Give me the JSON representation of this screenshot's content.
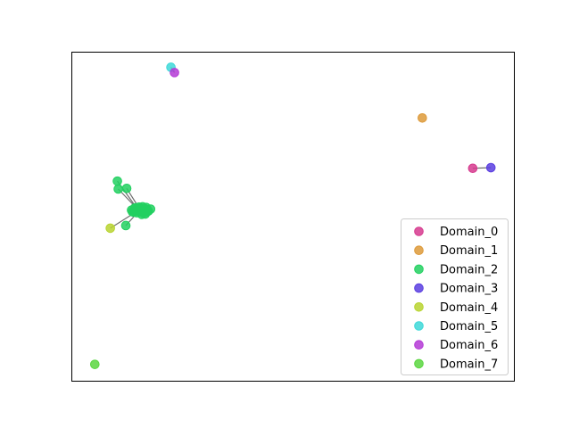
{
  "chart_data": {
    "type": "scatter",
    "title": "",
    "xlabel": "",
    "ylabel": "",
    "xlim": [
      0,
      100
    ],
    "ylim": [
      0,
      100
    ],
    "axis_ticks_visible": false,
    "grid": false,
    "legend_position": "lower-right",
    "edge_color": "#555555",
    "series": [
      {
        "name": "Domain_0",
        "color": "#d63a8e",
        "points": [
          [
            90.6,
            64.7
          ]
        ]
      },
      {
        "name": "Domain_1",
        "color": "#dd9a3a",
        "points": [
          [
            79.2,
            80.0
          ]
        ]
      },
      {
        "name": "Domain_2",
        "color": "#22d060",
        "points": [
          [
            10.3,
            60.8
          ],
          [
            10.5,
            58.4
          ],
          [
            12.4,
            58.6
          ],
          [
            12.2,
            47.3
          ],
          [
            13.5,
            52.0
          ],
          [
            14.2,
            52.6
          ],
          [
            14.9,
            52.2
          ],
          [
            15.6,
            52.4
          ],
          [
            16.4,
            52.4
          ],
          [
            17.1,
            52.1
          ],
          [
            17.8,
            52.3
          ],
          [
            14.0,
            51.4
          ],
          [
            14.7,
            51.2
          ],
          [
            15.5,
            51.6
          ],
          [
            16.2,
            51.1
          ],
          [
            16.9,
            51.4
          ],
          [
            15.2,
            52.9
          ],
          [
            16.0,
            53.0
          ],
          [
            16.8,
            52.8
          ],
          [
            15.8,
            50.7
          ],
          [
            16.6,
            50.8
          ],
          [
            14.5,
            52.7
          ],
          [
            17.3,
            51.7
          ],
          [
            13.7,
            51.5
          ]
        ]
      },
      {
        "name": "Domain_3",
        "color": "#5a3ee0",
        "points": [
          [
            94.7,
            64.9
          ]
        ]
      },
      {
        "name": "Domain_4",
        "color": "#b8d430",
        "points": [
          [
            8.7,
            46.5
          ]
        ]
      },
      {
        "name": "Domain_5",
        "color": "#3ed8d8",
        "points": [
          [
            22.4,
            95.4
          ]
        ]
      },
      {
        "name": "Domain_6",
        "color": "#b43ad6",
        "points": [
          [
            23.2,
            93.8
          ]
        ]
      },
      {
        "name": "Domain_7",
        "color": "#5ad640",
        "points": [
          [
            5.2,
            5.1
          ]
        ]
      }
    ],
    "edges": [
      [
        [
          90.6,
          64.7
        ],
        [
          94.7,
          64.9
        ]
      ],
      [
        [
          22.4,
          95.4
        ],
        [
          23.2,
          93.8
        ]
      ],
      [
        [
          10.3,
          60.8
        ],
        [
          15.0,
          52.0
        ]
      ],
      [
        [
          10.5,
          58.4
        ],
        [
          15.2,
          51.8
        ]
      ],
      [
        [
          12.4,
          58.6
        ],
        [
          15.5,
          52.0
        ]
      ],
      [
        [
          12.2,
          47.3
        ],
        [
          15.0,
          51.5
        ]
      ],
      [
        [
          8.7,
          46.5
        ],
        [
          14.8,
          51.7
        ]
      ],
      [
        [
          14.0,
          51.4
        ],
        [
          17.6,
          51.9
        ]
      ],
      [
        [
          13.5,
          52.0
        ],
        [
          17.0,
          52.6
        ]
      ]
    ]
  }
}
